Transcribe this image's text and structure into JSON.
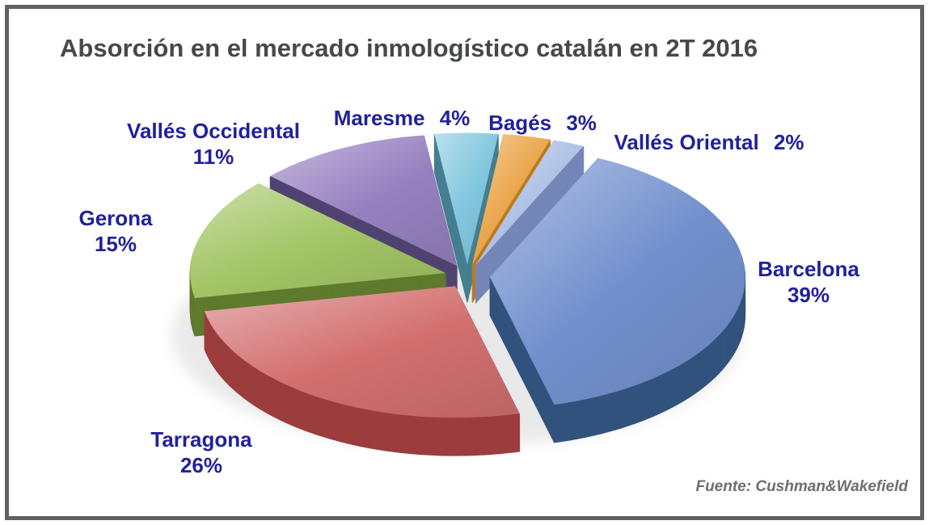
{
  "title": "Absorción en el mercado inmologístico catalán en 2T 2016",
  "source": "Fuente: Cushman&Wakefield",
  "frame": {
    "border_color": "#616161",
    "background": "#FFFFFF"
  },
  "chart_data": {
    "type": "pie",
    "is_3d": true,
    "exploded": true,
    "unit": "%",
    "title": "Absorción en el mercado inmologístico catalán en 2T 2016",
    "legend_position": "none",
    "labels_position": "outside",
    "start_angle_clockwise_from_top_deg": 25,
    "order_clockwise": [
      "Barcelona",
      "Tarragona",
      "Gerona",
      "Vallés Occidental",
      "Maresme",
      "Bagés",
      "Vallés Oriental"
    ],
    "slices": [
      {
        "name": "Barcelona",
        "value": 39,
        "pct_label": "39%",
        "color": "#7390CD",
        "dark": "#32537D"
      },
      {
        "name": "Tarragona",
        "value": 26,
        "pct_label": "26%",
        "color": "#D37070",
        "dark": "#9C3D3D"
      },
      {
        "name": "Gerona",
        "value": 15,
        "pct_label": "15%",
        "color": "#A2C565",
        "dark": "#5F7A2D"
      },
      {
        "name": "Vallés Occidental",
        "value": 11,
        "pct_label": "11%",
        "color": "#9782C1",
        "dark": "#514370"
      },
      {
        "name": "Maresme",
        "value": 4,
        "pct_label": "4%",
        "color": "#82C7DE",
        "dark": "#457F91"
      },
      {
        "name": "Bagés",
        "value": 3,
        "pct_label": "3%",
        "color": "#EAA54A",
        "dark": "#BA7B1F"
      },
      {
        "name": "Vallés Oriental",
        "value": 2,
        "pct_label": "2%",
        "color": "#AFC1E6",
        "dark": "#7487B7"
      }
    ],
    "label_color": "#21219B",
    "title_color": "#45484C",
    "source_color": "#6E6E6E",
    "shadow_color": "#C9C9C9"
  }
}
